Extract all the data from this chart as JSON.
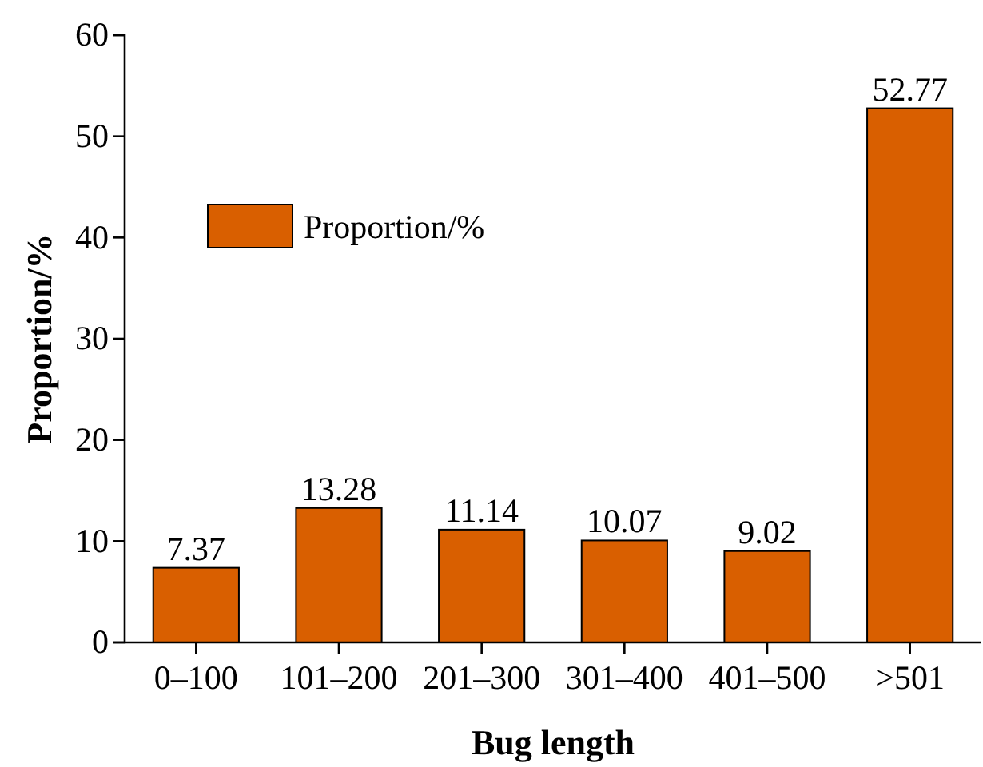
{
  "chart_data": {
    "type": "bar",
    "xlabel": "Bug length",
    "ylabel": "Proportion/%",
    "categories": [
      "0–100",
      "101–200",
      "201–300",
      "301–400",
      "401–500",
      ">501"
    ],
    "series": [
      {
        "name": "Proportion/%",
        "color": "#d95f00",
        "values": [
          7.37,
          13.28,
          11.14,
          10.07,
          9.02,
          52.77
        ]
      }
    ],
    "ylim": [
      0,
      60
    ],
    "yticks": [
      0,
      10,
      20,
      30,
      40,
      50,
      60
    ],
    "data_labels": true,
    "legend": "top left"
  }
}
